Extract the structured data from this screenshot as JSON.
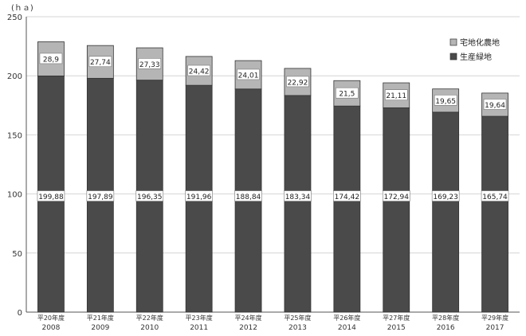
{
  "chart_data": {
    "type": "bar",
    "stacked": true,
    "unit_label": "(ｈａ)",
    "categories": [
      {
        "era": "平20年度",
        "year": "2008"
      },
      {
        "era": "平21年度",
        "year": "2009"
      },
      {
        "era": "平22年度",
        "year": "2010"
      },
      {
        "era": "平23年度",
        "year": "2011"
      },
      {
        "era": "平24年度",
        "year": "2012"
      },
      {
        "era": "平25年度",
        "year": "2013"
      },
      {
        "era": "平26年度",
        "year": "2014"
      },
      {
        "era": "平27年度",
        "year": "2015"
      },
      {
        "era": "平28年度",
        "year": "2016"
      },
      {
        "era": "平29年度",
        "year": "2017"
      }
    ],
    "series": [
      {
        "name": "生産緑地",
        "color": "#4a4a4a",
        "values": [
          199.88,
          197.89,
          196.35,
          191.96,
          188.84,
          183.34,
          174.42,
          172.94,
          169.23,
          165.74
        ],
        "labels": [
          "199,88",
          "197,89",
          "196,35",
          "191,96",
          "188,84",
          "183,34",
          "174,42",
          "172,94",
          "169,23",
          "165,74"
        ]
      },
      {
        "name": "宅地化農地",
        "color": "#b5b5b5",
        "values": [
          28.9,
          27.74,
          27.33,
          24.42,
          24.01,
          22.92,
          21.5,
          21.11,
          19.65,
          19.64
        ],
        "labels": [
          "28,9",
          "27,74",
          "27,33",
          "24,42",
          "24,01",
          "22,92",
          "21,5",
          "21,11",
          "19,65",
          "19,64"
        ]
      }
    ],
    "ylim": [
      0,
      250
    ],
    "yticks": [
      0,
      50,
      100,
      150,
      200,
      250
    ],
    "grid": true,
    "legend_position": "top-right"
  }
}
